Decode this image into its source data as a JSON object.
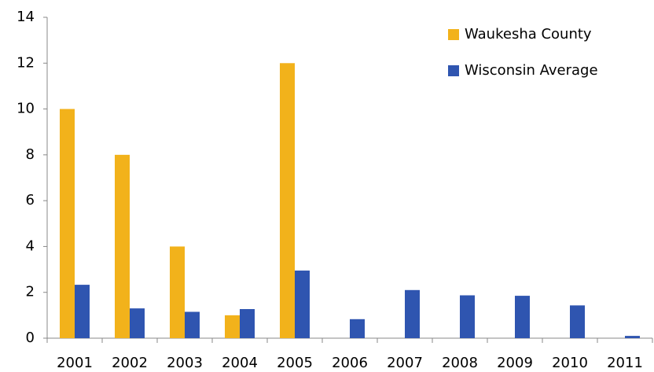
{
  "chart_data": {
    "type": "bar",
    "categories": [
      "2001",
      "2002",
      "2003",
      "2004",
      "2005",
      "2006",
      "2007",
      "2008",
      "2009",
      "2010",
      "2011"
    ],
    "series": [
      {
        "name": "Waukesha County",
        "color": "#f2b21b",
        "values": [
          10,
          8,
          4,
          1,
          12,
          0,
          0,
          0,
          0,
          0,
          0
        ]
      },
      {
        "name": "Wisconsin Average",
        "color": "#2f55b0",
        "values": [
          2.33,
          1.3,
          1.15,
          1.27,
          2.95,
          0.83,
          2.1,
          1.87,
          1.85,
          1.43,
          0.1
        ]
      }
    ],
    "ylim": [
      0,
      14
    ],
    "yticks": [
      0,
      2,
      4,
      6,
      8,
      10,
      12,
      14
    ],
    "grid": false,
    "legend": "top-right"
  }
}
